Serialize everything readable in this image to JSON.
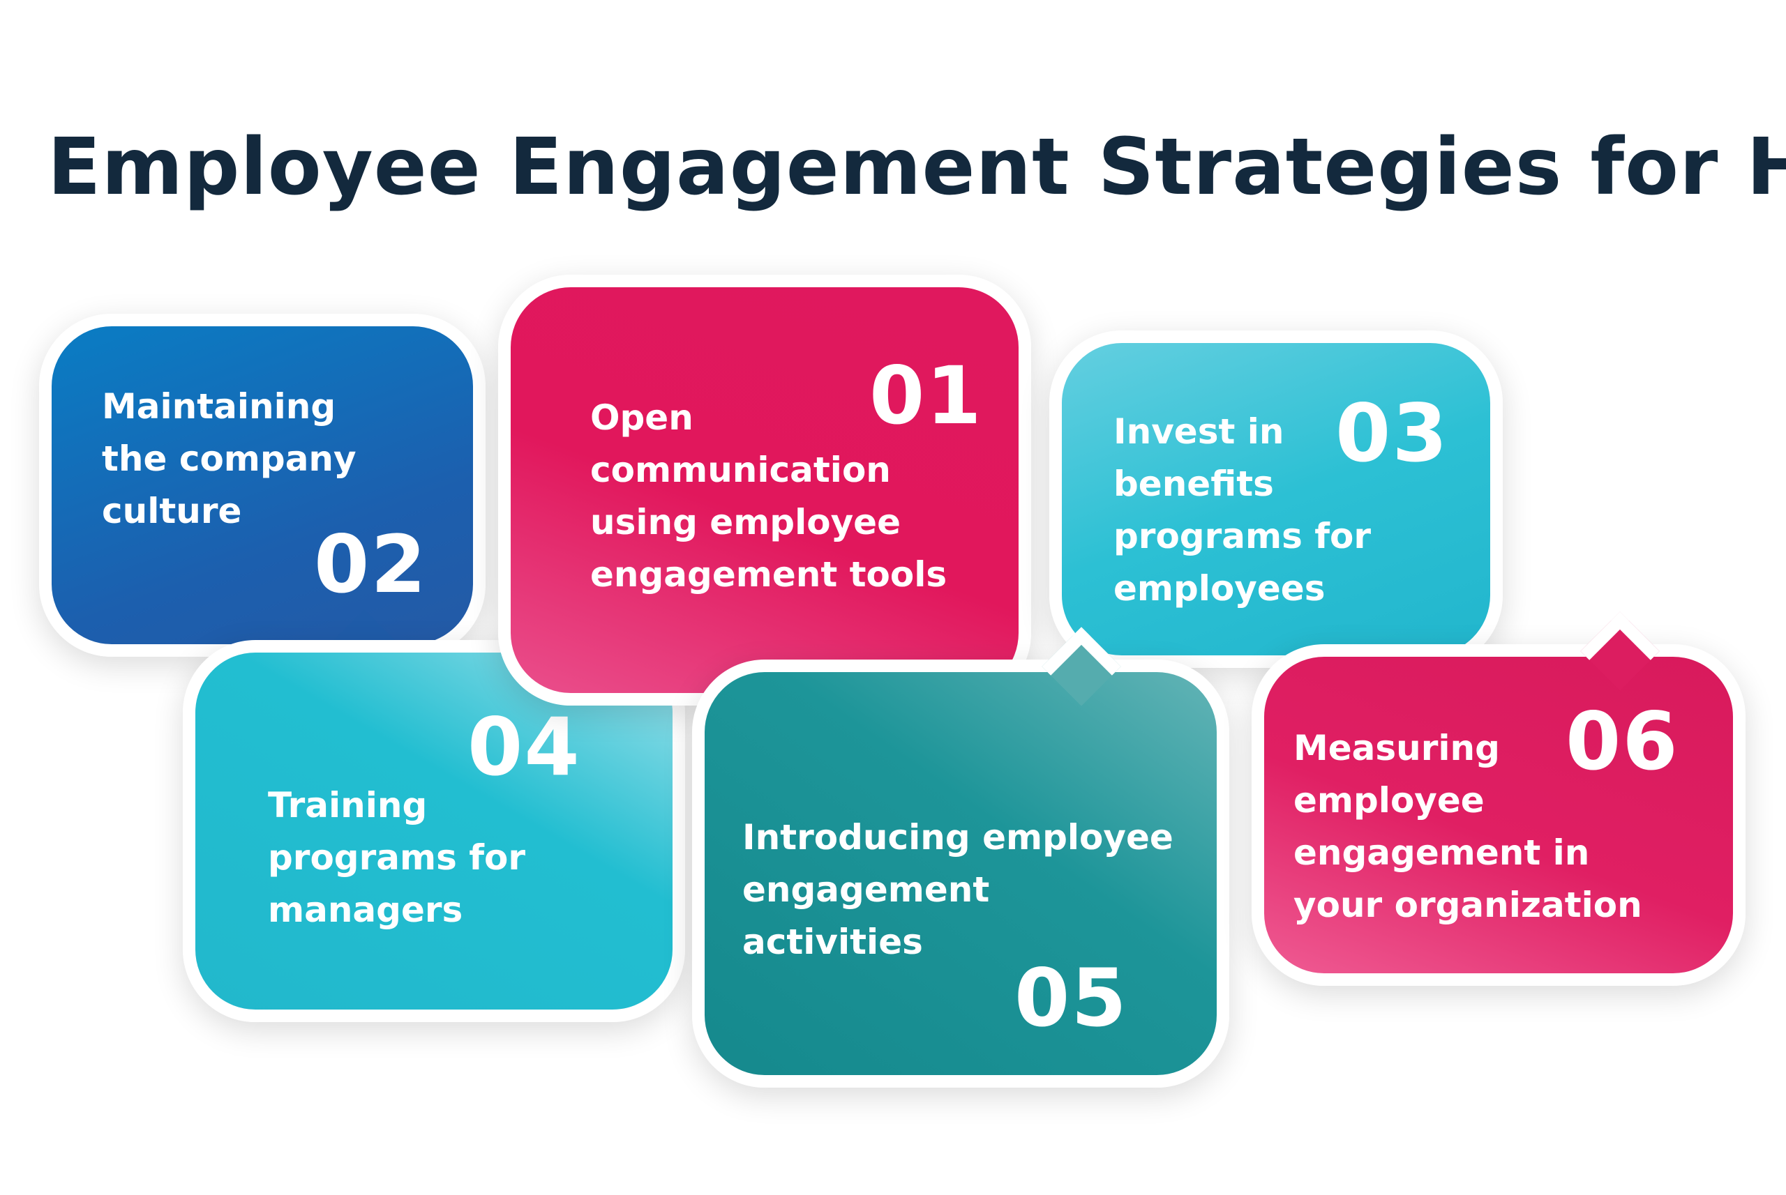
{
  "title": "Employee Engagement Strategies for HR",
  "items": [
    {
      "number": "01",
      "label": "Open\ncommunication\nusing employee\nengagement tools",
      "color": "#E1175C"
    },
    {
      "number": "02",
      "label": "Maintaining\nthe company\nculture",
      "color": "#1C5FAE"
    },
    {
      "number": "03",
      "label": "Invest in\nbenefits\nprograms for\nemployees",
      "color": "#2CC0D4"
    },
    {
      "number": "04",
      "label": "Training\nprograms for\nmanagers",
      "color": "#22BED1"
    },
    {
      "number": "05",
      "label": "Introducing employee\nengagement\nactivities",
      "color": "#15898D"
    },
    {
      "number": "06",
      "label": "Measuring\nemployee\nengagement in\nyour organization",
      "color": "#E01F63"
    }
  ]
}
